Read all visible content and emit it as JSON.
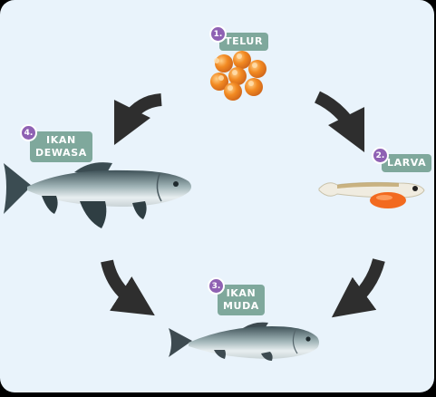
{
  "stages": [
    {
      "number": "1.",
      "label": "TELUR"
    },
    {
      "number": "2.",
      "label": "LARVA"
    },
    {
      "number": "3.",
      "label": "IKAN\nMUDA"
    },
    {
      "number": "4.",
      "label": "IKAN\nDEWASA"
    }
  ],
  "colors": {
    "background": "#e9f3fb",
    "tag": "#7fa89c",
    "number_badge": "#8f61b3",
    "arrow": "#2e2e2e",
    "egg": "#f28a22"
  },
  "icons": [
    "egg-cluster-icon",
    "larva-icon",
    "young-fish-icon",
    "adult-fish-icon",
    "cycle-arrow-icon"
  ]
}
